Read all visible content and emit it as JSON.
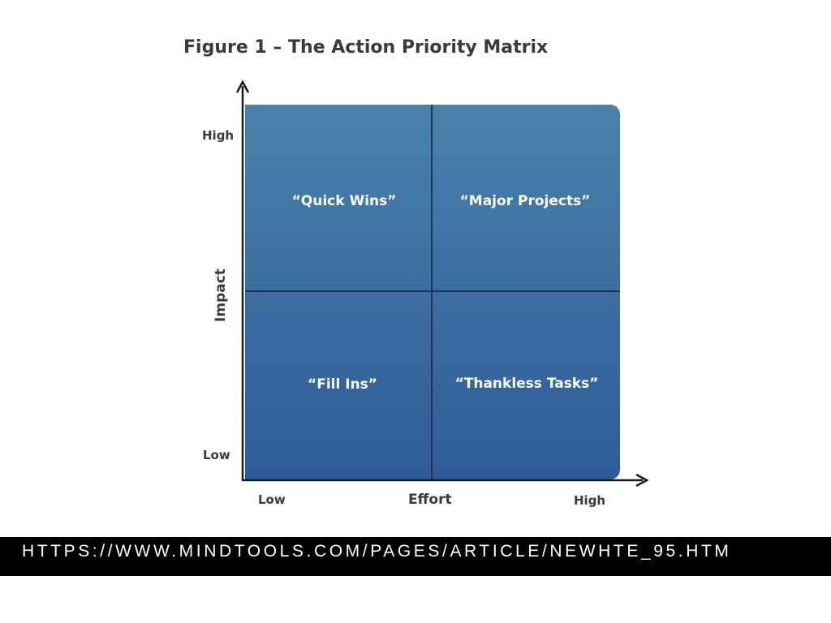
{
  "figure": {
    "title": "Figure 1 – The Action Priority Matrix"
  },
  "axes": {
    "y": {
      "title": "Impact",
      "high": "High",
      "low": "Low"
    },
    "x": {
      "title": "Effort",
      "low": "Low",
      "high": "High"
    }
  },
  "quadrants": {
    "top_left": "“Quick Wins”",
    "top_right": "“Major Projects”",
    "bottom_left": "“Fill Ins”",
    "bottom_right": "“Thankless Tasks”"
  },
  "colors": {
    "matrix_top": "#4a82ac",
    "matrix_bottom": "#2e5c98",
    "divider": "#1d3550",
    "axis": "#1a1a1a",
    "text": "#3a3a3a",
    "url_bar": "#000000"
  },
  "source": {
    "url": "HTTPS://WWW.MINDTOOLS.COM/PAGES/ARTICLE/NEWHTE_95.HTM"
  }
}
